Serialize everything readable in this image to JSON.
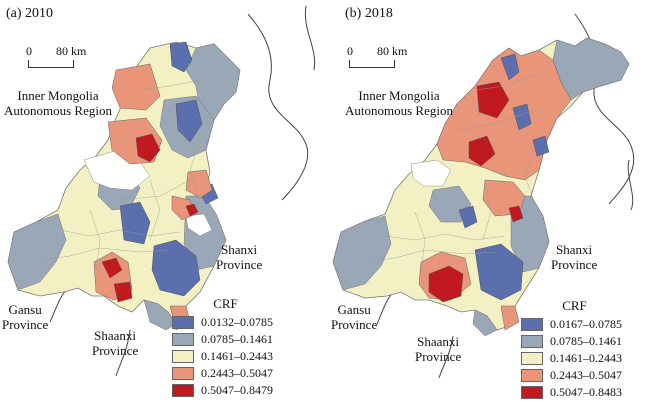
{
  "panels": [
    {
      "title": "(a) 2010",
      "scale": {
        "zero": "0",
        "dist": "80 km"
      },
      "labels": {
        "inner_mongolia": "Inner Mongolia\nAutonomous Region",
        "shanxi": "Shanxi\nProvince",
        "gansu": "Gansu\nProvince",
        "shaanxi": "Shaanxi\nProvince"
      },
      "legend": {
        "title": "CRF",
        "classes": [
          {
            "label": "0.0132–0.0785",
            "color": "#5b6fae"
          },
          {
            "label": "0.0785–0.1461",
            "color": "#9aa7b7"
          },
          {
            "label": "0.1461–0.2443",
            "color": "#f3f1c4"
          },
          {
            "label": "0.2443–0.5047",
            "color": "#e8957a"
          },
          {
            "label": "0.5047–0.8479",
            "color": "#c0191f"
          }
        ]
      }
    },
    {
      "title": "(b) 2018",
      "scale": {
        "zero": "0",
        "dist": "80 km"
      },
      "labels": {
        "inner_mongolia": "Inner Mongolia\nAutonomous Region",
        "shanxi": "Shanxi\nProvince",
        "gansu": "Gansu\nProvince",
        "shaanxi": "Shaanxi\nProvince"
      },
      "legend": {
        "title": "CRF",
        "classes": [
          {
            "label": "0.0167–0.0785",
            "color": "#5b6fae"
          },
          {
            "label": "0.0785–0.1461",
            "color": "#9aa7b7"
          },
          {
            "label": "0.1461–0.2443",
            "color": "#f3f1c4"
          },
          {
            "label": "0.2443–0.5047",
            "color": "#e8957a"
          },
          {
            "label": "0.5047–0.8483",
            "color": "#c0191f"
          }
        ]
      }
    }
  ]
}
